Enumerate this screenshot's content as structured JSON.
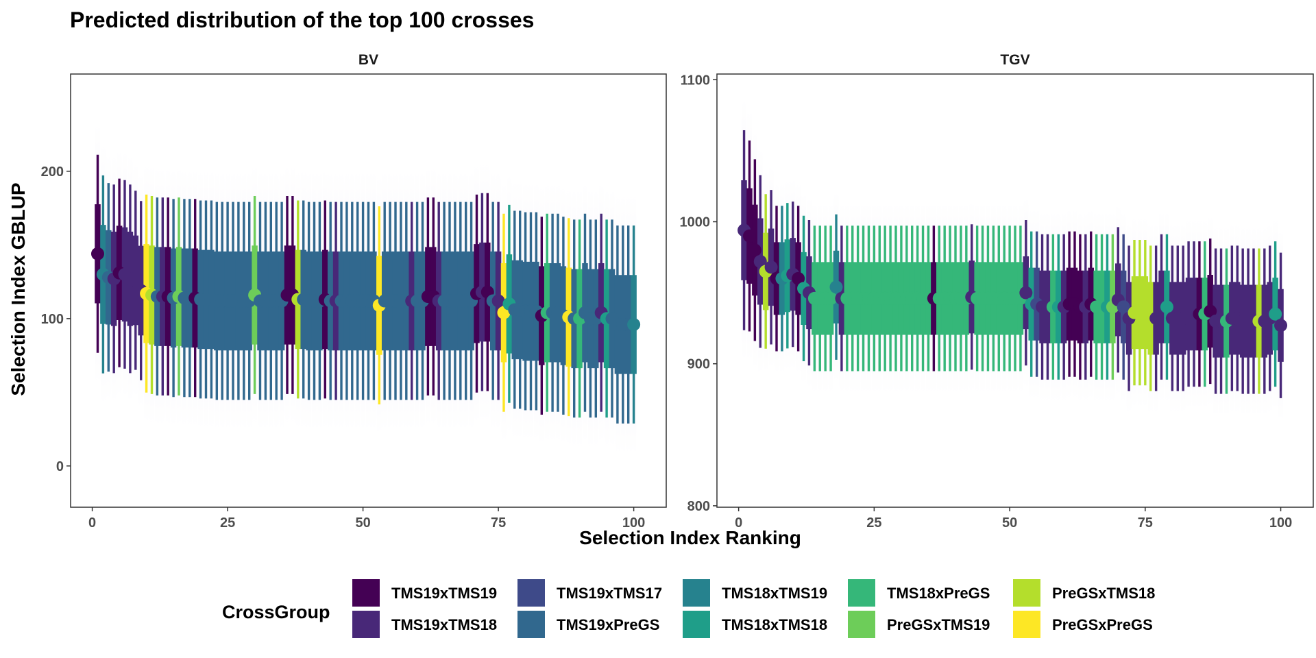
{
  "chart_data": {
    "type": "scatter",
    "title": "Predicted distribution of the top 100 crosses",
    "xlabel": "Selection Index Ranking",
    "ylabel": "Selection Index GBLUP",
    "legend": {
      "title": "CrossGroup",
      "position": "bottom"
    },
    "groups": [
      {
        "name": "TMS19xTMS19",
        "color": "#440154"
      },
      {
        "name": "TMS19xTMS18",
        "color": "#482878"
      },
      {
        "name": "TMS19xTMS17",
        "color": "#3E4A89"
      },
      {
        "name": "TMS19xPreGS",
        "color": "#31688E"
      },
      {
        "name": "TMS18xTMS19",
        "color": "#26828E"
      },
      {
        "name": "TMS18xTMS18",
        "color": "#1F9E89"
      },
      {
        "name": "TMS18xPreGS",
        "color": "#35B779"
      },
      {
        "name": "PreGSxTMS19",
        "color": "#6DCD59"
      },
      {
        "name": "PreGSxTMS18",
        "color": "#B4DE2C"
      },
      {
        "name": "PreGSxPreGS",
        "color": "#FDE725"
      }
    ],
    "panels": [
      {
        "strip": "BV",
        "xlim": [
          -4,
          106
        ],
        "ylim": [
          -28,
          266
        ],
        "x_ticks": [
          0,
          25,
          50,
          75,
          100
        ],
        "x_tick_labels": [
          "0",
          "25",
          "50",
          "75",
          "100"
        ],
        "y_ticks": [
          0,
          100,
          200
        ],
        "y_tick_labels": [
          "0",
          "100",
          "200"
        ],
        "x": [
          1,
          2,
          3,
          4,
          5,
          6,
          7,
          8,
          9,
          10,
          11,
          12,
          13,
          14,
          15,
          16,
          17,
          18,
          19,
          20,
          21,
          22,
          23,
          24,
          25,
          26,
          27,
          28,
          29,
          30,
          31,
          32,
          33,
          34,
          35,
          36,
          37,
          38,
          39,
          40,
          41,
          42,
          43,
          44,
          45,
          46,
          47,
          48,
          49,
          50,
          51,
          52,
          53,
          54,
          55,
          56,
          57,
          58,
          59,
          60,
          61,
          62,
          63,
          64,
          65,
          66,
          67,
          68,
          69,
          70,
          71,
          72,
          73,
          74,
          75,
          76,
          77,
          78,
          79,
          80,
          81,
          82,
          83,
          84,
          85,
          86,
          87,
          88,
          89,
          90,
          91,
          92,
          93,
          94,
          95,
          96,
          97,
          98,
          99,
          100
        ],
        "mean": [
          144,
          130,
          128,
          127,
          131,
          130,
          127,
          126,
          119,
          117,
          116,
          115,
          115,
          115,
          114,
          115,
          114,
          114,
          114,
          113,
          113,
          113,
          112,
          112,
          112,
          112,
          112,
          112,
          112,
          116,
          112,
          112,
          112,
          112,
          112,
          116,
          116,
          113,
          113,
          112,
          112,
          112,
          113,
          112,
          112,
          112,
          112,
          112,
          112,
          112,
          112,
          112,
          109,
          112,
          112,
          112,
          112,
          112,
          112,
          112,
          112,
          115,
          115,
          112,
          112,
          112,
          112,
          112,
          112,
          112,
          117,
          118,
          118,
          112,
          112,
          104,
          110,
          106,
          106,
          105,
          105,
          105,
          102,
          104,
          104,
          104,
          102,
          101,
          100,
          100,
          104,
          100,
          100,
          104,
          100,
          100,
          96,
          96,
          96,
          96
        ],
        "sd": [
          21,
          21,
          20,
          20,
          20,
          20,
          20,
          19,
          19,
          21,
          21,
          21,
          21,
          21,
          21,
          21,
          21,
          21,
          21,
          21,
          21,
          21,
          21,
          21,
          21,
          21,
          21,
          21,
          21,
          21,
          21,
          21,
          21,
          21,
          21,
          21,
          21,
          21,
          21,
          21,
          21,
          21,
          21,
          21,
          21,
          21,
          21,
          21,
          21,
          21,
          21,
          21,
          21,
          21,
          21,
          21,
          21,
          21,
          21,
          21,
          21,
          21,
          21,
          21,
          21,
          21,
          21,
          21,
          21,
          21,
          21,
          21,
          21,
          21,
          21,
          21,
          21,
          21,
          21,
          21,
          21,
          21,
          21,
          21,
          21,
          21,
          21,
          21,
          21,
          21,
          21,
          21,
          21,
          21,
          21,
          21,
          21,
          21,
          21,
          21
        ],
        "group": [
          0,
          4,
          3,
          1,
          0,
          1,
          1,
          1,
          1,
          9,
          8,
          3,
          1,
          0,
          3,
          7,
          3,
          3,
          0,
          3,
          3,
          3,
          3,
          3,
          3,
          3,
          3,
          3,
          3,
          7,
          3,
          3,
          3,
          3,
          3,
          0,
          0,
          8,
          3,
          3,
          3,
          3,
          0,
          3,
          1,
          3,
          3,
          3,
          3,
          3,
          3,
          3,
          9,
          3,
          3,
          3,
          3,
          3,
          1,
          3,
          3,
          0,
          0,
          1,
          3,
          3,
          3,
          3,
          3,
          3,
          0,
          1,
          0,
          3,
          1,
          9,
          5,
          3,
          3,
          3,
          3,
          3,
          0,
          6,
          3,
          3,
          3,
          9,
          3,
          6,
          3,
          3,
          3,
          1,
          5,
          3,
          3,
          3,
          3,
          4
        ]
      },
      {
        "strip": "TGV",
        "xlim": [
          -4,
          106
        ],
        "ylim": [
          799,
          1104
        ],
        "x_ticks": [
          0,
          25,
          50,
          75,
          100
        ],
        "x_tick_labels": [
          "0",
          "25",
          "50",
          "75",
          "100"
        ],
        "y_ticks": [
          800,
          900,
          1000,
          1100
        ],
        "y_tick_labels": [
          "800",
          "900",
          "1000",
          "1100"
        ],
        "x": [
          1,
          2,
          3,
          4,
          5,
          6,
          7,
          8,
          9,
          10,
          11,
          12,
          13,
          14,
          15,
          16,
          17,
          18,
          19,
          20,
          21,
          22,
          23,
          24,
          25,
          26,
          27,
          28,
          29,
          30,
          31,
          32,
          33,
          34,
          35,
          36,
          37,
          38,
          39,
          40,
          41,
          42,
          43,
          44,
          45,
          46,
          47,
          48,
          49,
          50,
          51,
          52,
          53,
          54,
          55,
          56,
          57,
          58,
          59,
          60,
          61,
          62,
          63,
          64,
          65,
          66,
          67,
          68,
          69,
          70,
          71,
          72,
          73,
          74,
          75,
          76,
          77,
          78,
          79,
          80,
          81,
          82,
          83,
          84,
          85,
          86,
          87,
          88,
          89,
          90,
          91,
          92,
          93,
          94,
          95,
          96,
          97,
          98,
          99,
          100
        ],
        "mean": [
          994,
          990,
          980,
          972,
          965,
          968,
          960,
          960,
          962,
          963,
          960,
          953,
          950,
          946,
          946,
          946,
          946,
          954,
          946,
          946,
          946,
          946,
          946,
          946,
          946,
          946,
          946,
          946,
          946,
          946,
          946,
          946,
          946,
          946,
          946,
          946,
          946,
          946,
          946,
          946,
          946,
          946,
          947,
          946,
          946,
          946,
          946,
          946,
          946,
          946,
          946,
          946,
          950,
          942,
          942,
          940,
          940,
          940,
          940,
          940,
          942,
          942,
          940,
          940,
          942,
          940,
          940,
          940,
          940,
          945,
          940,
          932,
          936,
          936,
          936,
          932,
          932,
          940,
          940,
          932,
          932,
          932,
          935,
          935,
          935,
          935,
          937,
          930,
          930,
          930,
          932,
          932,
          930,
          930,
          930,
          930,
          930,
          932,
          935,
          927
        ],
        "sd": [
          22,
          21,
          20,
          19,
          17,
          17,
          16,
          16,
          16,
          16,
          16,
          16,
          16,
          16,
          16,
          16,
          16,
          16,
          16,
          16,
          16,
          16,
          16,
          16,
          16,
          16,
          16,
          16,
          16,
          16,
          16,
          16,
          16,
          16,
          16,
          16,
          16,
          16,
          16,
          16,
          16,
          16,
          16,
          16,
          16,
          16,
          16,
          16,
          16,
          16,
          16,
          16,
          16,
          16,
          16,
          16,
          16,
          16,
          16,
          16,
          16,
          16,
          16,
          16,
          16,
          16,
          16,
          16,
          16,
          16,
          16,
          16,
          16,
          16,
          16,
          16,
          16,
          16,
          16,
          16,
          16,
          16,
          16,
          16,
          16,
          16,
          16,
          16,
          16,
          16,
          16,
          16,
          16,
          16,
          16,
          16,
          16,
          16,
          16,
          16
        ],
        "group": [
          1,
          0,
          0,
          1,
          8,
          1,
          0,
          4,
          5,
          1,
          0,
          5,
          1,
          6,
          6,
          6,
          6,
          4,
          1,
          6,
          6,
          6,
          6,
          6,
          6,
          6,
          6,
          6,
          6,
          6,
          6,
          6,
          6,
          6,
          6,
          0,
          6,
          6,
          6,
          6,
          6,
          6,
          1,
          6,
          6,
          6,
          6,
          6,
          6,
          6,
          6,
          6,
          1,
          5,
          2,
          1,
          1,
          6,
          5,
          1,
          0,
          0,
          0,
          1,
          0,
          6,
          6,
          5,
          7,
          1,
          2,
          1,
          8,
          8,
          8,
          8,
          1,
          1,
          5,
          1,
          1,
          1,
          1,
          1,
          0,
          6,
          0,
          1,
          1,
          6,
          1,
          1,
          1,
          1,
          1,
          8,
          1,
          1,
          5,
          1
        ]
      }
    ]
  }
}
